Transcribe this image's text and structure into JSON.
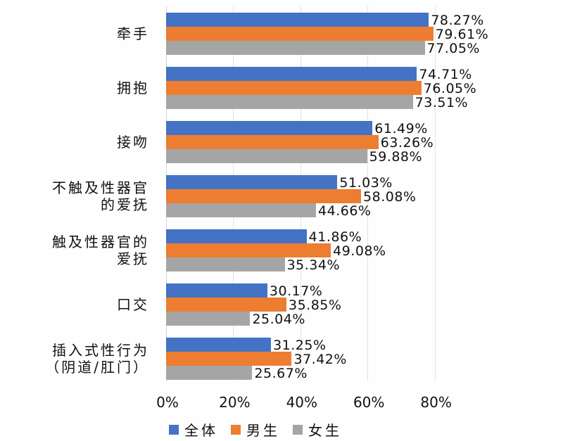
{
  "chart_data": {
    "type": "bar",
    "orientation": "horizontal",
    "title": "",
    "xlabel": "",
    "ylabel": "",
    "xlim": [
      0,
      0.85
    ],
    "x_ticks": [
      "0%",
      "20%",
      "40%",
      "60%",
      "80%"
    ],
    "grid": true,
    "legend_position": "bottom",
    "categories": [
      "牵手",
      "拥抱",
      "接吻",
      "不触及性器官\n的爱抚",
      "触及性器官的\n爱抚",
      "口交",
      "插入式性行为\n（阴道/肛门）"
    ],
    "series": [
      {
        "name": "全体",
        "color": "#4472C4",
        "values": [
          78.27,
          74.71,
          61.49,
          51.03,
          41.86,
          30.17,
          31.25
        ]
      },
      {
        "name": "男生",
        "color": "#ED7D31",
        "values": [
          79.61,
          76.05,
          63.26,
          58.08,
          49.08,
          35.85,
          37.42
        ]
      },
      {
        "name": "女生",
        "color": "#A5A5A5",
        "values": [
          77.05,
          73.51,
          59.88,
          44.66,
          35.34,
          25.04,
          25.67
        ]
      }
    ],
    "value_labels": [
      [
        "78.27%",
        "79.61%",
        "77.05%"
      ],
      [
        "74.71%",
        "76.05%",
        "73.51%"
      ],
      [
        "61.49%",
        "63.26%",
        "59.88%"
      ],
      [
        "51.03%",
        "58.08%",
        "44.66%"
      ],
      [
        "41.86%",
        "49.08%",
        "35.34%"
      ],
      [
        "30.17%",
        "35.85%",
        "25.04%"
      ],
      [
        "31.25%",
        "37.42%",
        "25.67%"
      ]
    ]
  },
  "category_lines": [
    [
      "牵手"
    ],
    [
      "拥抱"
    ],
    [
      "接吻"
    ],
    [
      "不触及性器官",
      "的爱抚"
    ],
    [
      "触及性器官的",
      "爱抚"
    ],
    [
      "口交"
    ],
    [
      "插入式性行为",
      "（阴道/肛门）"
    ]
  ],
  "legend": [
    {
      "label": "全体",
      "color": "#4472C4"
    },
    {
      "label": "男生",
      "color": "#ED7D31"
    },
    {
      "label": "女生",
      "color": "#A5A5A5"
    }
  ]
}
